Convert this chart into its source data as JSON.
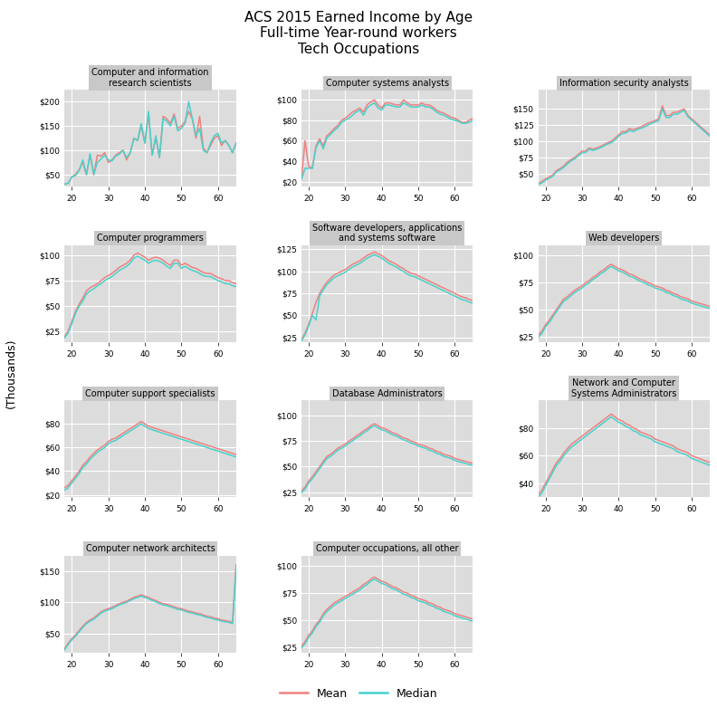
{
  "title": "ACS 2015 Earned Income by Age\nFull-time Year-round workers\nTech Occupations",
  "ylabel": "(Thousands)",
  "mean_color": "#F08080",
  "median_color": "#48D1CC",
  "line_width": 1.1,
  "plot_bg_color": "#DCDCDC",
  "grid_color": "#FFFFFF",
  "age_min": 18,
  "age_max": 65,
  "subplots": [
    {
      "title": "Computer and information\nresearch scientists",
      "ylim": [
        25,
        225
      ],
      "yticks": [
        50,
        100,
        150,
        200
      ],
      "ytick_labels": [
        "$50",
        "$100",
        "$150",
        "$200"
      ],
      "mean": [
        30,
        32,
        45,
        50,
        60,
        75,
        50,
        90,
        50,
        90,
        88,
        95,
        75,
        80,
        90,
        95,
        100,
        80,
        95,
        125,
        120,
        150,
        115,
        175,
        90,
        125,
        85,
        170,
        165,
        155,
        175,
        145,
        150,
        160,
        180,
        165,
        125,
        170,
        105,
        95,
        110,
        125,
        130,
        110,
        120,
        110,
        95,
        115
      ],
      "median": [
        30,
        32,
        45,
        48,
        58,
        80,
        50,
        93,
        50,
        75,
        82,
        90,
        80,
        78,
        88,
        92,
        100,
        85,
        95,
        125,
        120,
        155,
        115,
        180,
        90,
        130,
        85,
        165,
        160,
        150,
        170,
        140,
        145,
        155,
        200,
        165,
        130,
        145,
        100,
        95,
        115,
        130,
        135,
        115,
        120,
        110,
        95,
        115
      ]
    },
    {
      "title": "Computer systems analysts",
      "ylim": [
        15,
        110
      ],
      "yticks": [
        20,
        40,
        60,
        80,
        100
      ],
      "ytick_labels": [
        "$20",
        "$40",
        "$60",
        "$80",
        "$100"
      ],
      "mean": [
        22,
        60,
        35,
        33,
        55,
        62,
        55,
        65,
        68,
        72,
        75,
        80,
        82,
        85,
        88,
        90,
        92,
        88,
        95,
        98,
        100,
        95,
        92,
        97,
        97,
        96,
        95,
        95,
        100,
        97,
        95,
        95,
        95,
        97,
        95,
        95,
        93,
        90,
        88,
        87,
        85,
        83,
        82,
        80,
        78,
        78,
        80,
        82
      ],
      "median": [
        22,
        33,
        33,
        33,
        53,
        60,
        52,
        63,
        66,
        70,
        73,
        78,
        80,
        82,
        85,
        88,
        90,
        85,
        92,
        95,
        97,
        92,
        90,
        95,
        95,
        94,
        93,
        93,
        97,
        95,
        93,
        93,
        93,
        95,
        93,
        93,
        91,
        88,
        86,
        85,
        83,
        81,
        80,
        79,
        77,
        77,
        78,
        80
      ]
    },
    {
      "title": "Information security analysts",
      "ylim": [
        30,
        180
      ],
      "yticks": [
        50,
        75,
        100,
        125,
        150
      ],
      "ytick_labels": [
        "$50",
        "$75",
        "$100",
        "$125",
        "$150"
      ],
      "mean": [
        35,
        38,
        42,
        45,
        48,
        55,
        58,
        62,
        68,
        72,
        75,
        80,
        85,
        85,
        90,
        88,
        90,
        92,
        95,
        98,
        100,
        105,
        110,
        115,
        115,
        120,
        118,
        120,
        122,
        125,
        128,
        130,
        132,
        135,
        155,
        140,
        140,
        145,
        145,
        148,
        150,
        140,
        135,
        130,
        125,
        120,
        115,
        110
      ],
      "median": [
        33,
        36,
        40,
        43,
        46,
        53,
        56,
        60,
        65,
        70,
        73,
        78,
        82,
        83,
        88,
        86,
        88,
        90,
        93,
        96,
        98,
        102,
        108,
        112,
        113,
        117,
        115,
        118,
        120,
        122,
        125,
        128,
        130,
        132,
        150,
        137,
        137,
        142,
        142,
        145,
        148,
        138,
        133,
        128,
        123,
        118,
        113,
        108
      ]
    },
    {
      "title": "Computer programmers",
      "ylim": [
        15,
        110
      ],
      "yticks": [
        25,
        50,
        75,
        100
      ],
      "ytick_labels": [
        "$25",
        "$50",
        "$75",
        "$100"
      ],
      "mean": [
        20,
        26,
        35,
        45,
        52,
        58,
        65,
        68,
        70,
        72,
        75,
        78,
        80,
        82,
        85,
        88,
        90,
        92,
        95,
        100,
        102,
        100,
        98,
        95,
        97,
        98,
        97,
        95,
        92,
        90,
        95,
        95,
        90,
        92,
        90,
        88,
        87,
        85,
        83,
        82,
        82,
        80,
        78,
        77,
        75,
        75,
        73,
        72
      ],
      "median": [
        19,
        24,
        33,
        43,
        50,
        55,
        62,
        65,
        67,
        70,
        72,
        75,
        77,
        79,
        82,
        85,
        87,
        89,
        92,
        97,
        99,
        97,
        95,
        92,
        94,
        95,
        94,
        92,
        89,
        87,
        92,
        92,
        87,
        89,
        87,
        85,
        84,
        82,
        80,
        79,
        79,
        77,
        75,
        74,
        72,
        72,
        70,
        69
      ]
    },
    {
      "title": "Software developers, applications\nand systems software",
      "ylim": [
        20,
        130
      ],
      "yticks": [
        25,
        50,
        75,
        100,
        125
      ],
      "ytick_labels": [
        "$25",
        "$50",
        "$75",
        "$100",
        "$125"
      ],
      "mean": [
        22,
        30,
        40,
        52,
        65,
        75,
        82,
        88,
        92,
        96,
        98,
        100,
        102,
        105,
        108,
        110,
        112,
        115,
        118,
        120,
        122,
        120,
        118,
        115,
        112,
        110,
        108,
        105,
        103,
        100,
        98,
        97,
        95,
        93,
        91,
        89,
        87,
        85,
        83,
        81,
        79,
        77,
        75,
        73,
        71,
        70,
        68,
        67
      ],
      "median": [
        21,
        28,
        38,
        50,
        45,
        72,
        79,
        85,
        89,
        93,
        95,
        97,
        99,
        102,
        105,
        107,
        109,
        112,
        115,
        117,
        119,
        117,
        115,
        112,
        109,
        107,
        105,
        102,
        100,
        97,
        95,
        94,
        92,
        90,
        88,
        86,
        84,
        82,
        80,
        78,
        76,
        74,
        72,
        70,
        68,
        67,
        65,
        64
      ]
    },
    {
      "title": "Web developers",
      "ylim": [
        20,
        110
      ],
      "yticks": [
        25,
        50,
        75,
        100
      ],
      "ytick_labels": [
        "$25",
        "$50",
        "$75",
        "$100"
      ],
      "mean": [
        26,
        30,
        36,
        40,
        45,
        50,
        55,
        60,
        62,
        65,
        68,
        70,
        72,
        75,
        77,
        80,
        82,
        85,
        87,
        90,
        92,
        90,
        88,
        87,
        85,
        83,
        82,
        80,
        78,
        77,
        75,
        74,
        72,
        71,
        70,
        68,
        67,
        65,
        64,
        62,
        61,
        60,
        58,
        57,
        56,
        55,
        54,
        53
      ],
      "median": [
        24,
        28,
        34,
        38,
        43,
        48,
        53,
        58,
        60,
        63,
        66,
        68,
        70,
        73,
        75,
        78,
        80,
        83,
        85,
        88,
        90,
        88,
        86,
        85,
        83,
        81,
        80,
        78,
        76,
        75,
        73,
        72,
        70,
        69,
        68,
        66,
        65,
        63,
        62,
        60,
        59,
        58,
        56,
        55,
        54,
        53,
        52,
        51
      ]
    },
    {
      "title": "Computer support specialists",
      "ylim": [
        18,
        100
      ],
      "yticks": [
        20,
        40,
        60,
        80
      ],
      "ytick_labels": [
        "$20",
        "$40",
        "$60",
        "$80"
      ],
      "mean": [
        26,
        28,
        32,
        36,
        40,
        45,
        48,
        52,
        55,
        58,
        60,
        62,
        65,
        67,
        68,
        70,
        72,
        74,
        76,
        78,
        80,
        82,
        80,
        78,
        77,
        76,
        75,
        74,
        73,
        72,
        71,
        70,
        69,
        68,
        67,
        66,
        65,
        64,
        63,
        62,
        61,
        60,
        59,
        58,
        57,
        56,
        55,
        54
      ],
      "median": [
        24,
        26,
        30,
        34,
        38,
        43,
        46,
        50,
        53,
        56,
        58,
        60,
        63,
        65,
        66,
        68,
        70,
        72,
        74,
        76,
        78,
        80,
        78,
        76,
        75,
        74,
        73,
        72,
        71,
        70,
        69,
        68,
        67,
        66,
        65,
        64,
        63,
        62,
        61,
        60,
        59,
        58,
        57,
        56,
        55,
        54,
        53,
        52
      ]
    },
    {
      "title": "Database Administrators",
      "ylim": [
        20,
        115
      ],
      "yticks": [
        25,
        50,
        75,
        100
      ],
      "ytick_labels": [
        "$25",
        "$50",
        "$75",
        "$100"
      ],
      "mean": [
        26,
        30,
        36,
        40,
        45,
        50,
        55,
        60,
        62,
        65,
        68,
        70,
        72,
        75,
        77,
        80,
        82,
        85,
        87,
        90,
        92,
        90,
        88,
        87,
        85,
        83,
        82,
        80,
        78,
        77,
        75,
        74,
        72,
        71,
        70,
        68,
        67,
        65,
        64,
        62,
        61,
        60,
        58,
        57,
        56,
        55,
        54,
        53
      ],
      "median": [
        24,
        28,
        34,
        38,
        43,
        48,
        53,
        58,
        60,
        63,
        66,
        68,
        70,
        73,
        75,
        78,
        80,
        83,
        85,
        88,
        90,
        88,
        86,
        85,
        83,
        81,
        80,
        78,
        76,
        75,
        73,
        72,
        70,
        69,
        68,
        66,
        65,
        63,
        62,
        60,
        59,
        58,
        56,
        55,
        54,
        53,
        52,
        51
      ]
    },
    {
      "title": "Network and Computer\nSystems Administrators",
      "ylim": [
        30,
        100
      ],
      "yticks": [
        40,
        60,
        80
      ],
      "ytick_labels": [
        "$40",
        "$60",
        "$80"
      ],
      "mean": [
        32,
        35,
        40,
        45,
        50,
        55,
        58,
        62,
        65,
        68,
        70,
        72,
        74,
        76,
        78,
        80,
        82,
        84,
        86,
        88,
        90,
        88,
        86,
        85,
        83,
        82,
        80,
        79,
        77,
        76,
        75,
        74,
        72,
        71,
        70,
        69,
        68,
        67,
        65,
        64,
        63,
        62,
        60,
        59,
        58,
        57,
        56,
        55
      ],
      "median": [
        30,
        33,
        38,
        43,
        48,
        53,
        56,
        60,
        63,
        66,
        68,
        70,
        72,
        74,
        76,
        78,
        80,
        82,
        84,
        86,
        88,
        86,
        84,
        83,
        81,
        80,
        78,
        77,
        75,
        74,
        73,
        72,
        70,
        69,
        68,
        67,
        66,
        65,
        63,
        62,
        61,
        60,
        58,
        57,
        56,
        55,
        54,
        53
      ]
    },
    {
      "title": "Computer network architects",
      "ylim": [
        20,
        175
      ],
      "yticks": [
        50,
        100,
        150
      ],
      "ytick_labels": [
        "$50",
        "$100",
        "$150"
      ],
      "mean": [
        26,
        35,
        42,
        48,
        55,
        62,
        68,
        72,
        75,
        80,
        85,
        88,
        90,
        92,
        95,
        98,
        100,
        102,
        105,
        108,
        110,
        112,
        110,
        108,
        105,
        103,
        100,
        98,
        97,
        95,
        93,
        91,
        90,
        88,
        86,
        85,
        83,
        82,
        80,
        78,
        77,
        75,
        74,
        72,
        71,
        70,
        68,
        160
      ],
      "median": [
        24,
        33,
        40,
        46,
        53,
        60,
        66,
        70,
        73,
        78,
        83,
        86,
        88,
        90,
        93,
        96,
        98,
        100,
        103,
        106,
        108,
        110,
        108,
        106,
        103,
        101,
        98,
        96,
        95,
        93,
        91,
        89,
        88,
        86,
        84,
        83,
        81,
        80,
        78,
        76,
        75,
        73,
        72,
        70,
        69,
        68,
        66,
        155
      ]
    },
    {
      "title": "Computer occupations, all other",
      "ylim": [
        20,
        110
      ],
      "yticks": [
        25,
        50,
        75,
        100
      ],
      "ytick_labels": [
        "$25",
        "$50",
        "$75",
        "$100"
      ],
      "mean": [
        26,
        30,
        36,
        40,
        46,
        50,
        56,
        60,
        63,
        66,
        68,
        70,
        72,
        74,
        76,
        78,
        80,
        83,
        85,
        88,
        90,
        88,
        86,
        85,
        83,
        81,
        80,
        78,
        76,
        75,
        73,
        72,
        70,
        69,
        68,
        66,
        65,
        63,
        62,
        60,
        59,
        58,
        56,
        55,
        54,
        53,
        52,
        51
      ],
      "median": [
        24,
        28,
        34,
        38,
        44,
        48,
        54,
        58,
        61,
        64,
        66,
        68,
        70,
        72,
        74,
        76,
        78,
        81,
        83,
        86,
        88,
        86,
        84,
        83,
        81,
        79,
        78,
        76,
        74,
        73,
        71,
        70,
        68,
        67,
        66,
        64,
        63,
        61,
        60,
        58,
        57,
        56,
        54,
        53,
        52,
        51,
        50,
        49
      ]
    }
  ]
}
